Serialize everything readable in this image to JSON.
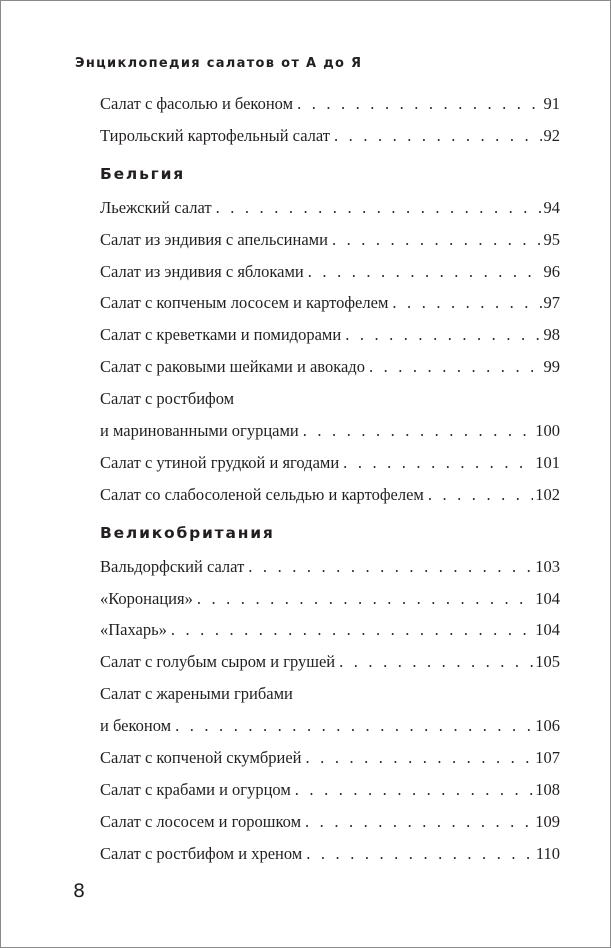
{
  "running_head": "Энциклопедия салатов от А до Я",
  "page_number": "8",
  "leader": ". . . . . . . . . . . . . . . . . . . . . . . . . . . . . . . . . . . . . . . . . . . . . . . . . . . . . . . . . . . .",
  "blocks": [
    {
      "type": "entry",
      "title": "Салат с фасолью и беконом",
      "page": "91"
    },
    {
      "type": "entry",
      "title": "Тирольский картофельный салат",
      "page": "92"
    },
    {
      "type": "section",
      "title": "Бельгия"
    },
    {
      "type": "entry",
      "title": "Льежский салат",
      "page": "94"
    },
    {
      "type": "entry",
      "title": "Салат из эндивия с апельсинами",
      "page": "95"
    },
    {
      "type": "entry",
      "title": "Салат из эндивия с яблоками",
      "page": "96"
    },
    {
      "type": "entry",
      "title": "Салат с копченым лососем и картофелем",
      "page": "97"
    },
    {
      "type": "entry",
      "title": "Салат с креветками и помидорами",
      "page": "98"
    },
    {
      "type": "entry",
      "title": "Салат с раковыми шейками и авокадо",
      "page": "99"
    },
    {
      "type": "line",
      "title": "Салат с ростбифом"
    },
    {
      "type": "entry",
      "title": "и маринованными огурцами",
      "page": "100"
    },
    {
      "type": "entry",
      "title": "Салат с утиной грудкой и ягодами",
      "page": "101"
    },
    {
      "type": "entry",
      "title": "Салат со слабосоленой сельдью и картофелем",
      "page": "102"
    },
    {
      "type": "section",
      "title": "Великобритания"
    },
    {
      "type": "entry",
      "title": "Вальдорфский салат",
      "page": "103"
    },
    {
      "type": "entry",
      "title": "«Коронация»",
      "page": "104"
    },
    {
      "type": "entry",
      "title": "«Пахарь»",
      "page": "104"
    },
    {
      "type": "entry",
      "title": "Салат с голубым сыром и грушей",
      "page": "105"
    },
    {
      "type": "line",
      "title": "Салат с жареными грибами"
    },
    {
      "type": "entry",
      "title": "и беконом",
      "page": "106"
    },
    {
      "type": "entry",
      "title": "Салат с копченой скумбрией",
      "page": "107"
    },
    {
      "type": "entry",
      "title": "Салат с крабами и огурцом",
      "page": "108"
    },
    {
      "type": "entry",
      "title": "Салат с лососем и горошком",
      "page": "109"
    },
    {
      "type": "entry",
      "title": "Салат с ростбифом и хреном",
      "page": "110"
    }
  ]
}
